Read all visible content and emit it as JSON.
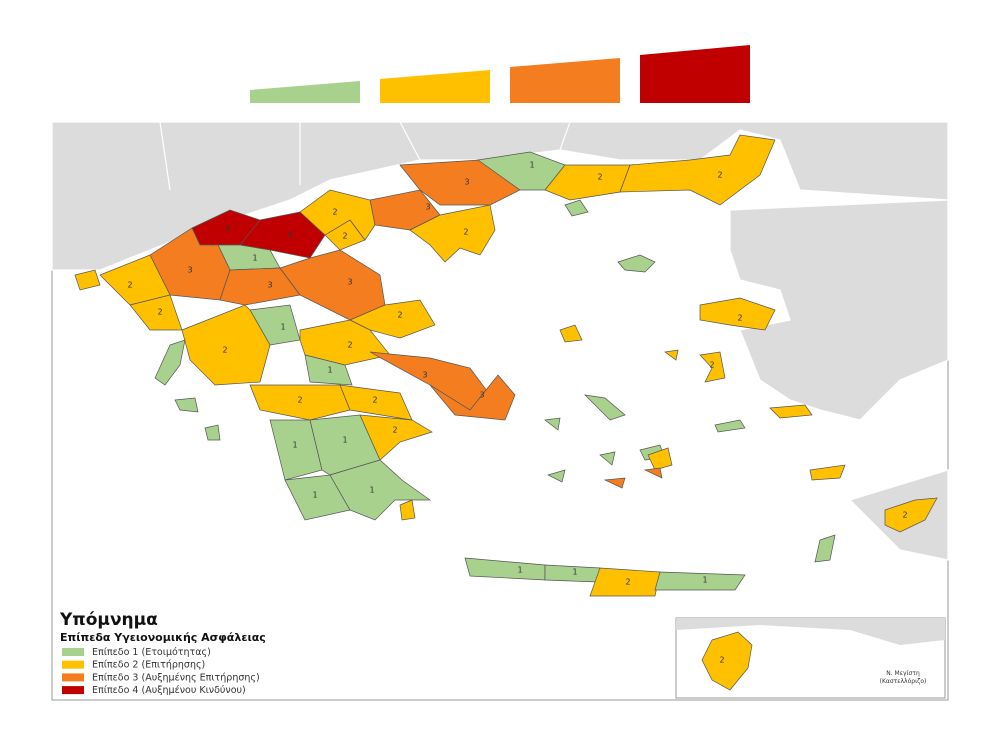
{
  "legend": {
    "title": "Υπόμνημα",
    "subtitle": "Επίπεδα Υγειονομικής Ασφάλειας",
    "items": [
      {
        "label": "Επίπεδο 1 (Ετοιμότητας)",
        "color": "#a9d18e"
      },
      {
        "label": "Επίπεδο 2 (Επιτήρησης)",
        "color": "#ffc000"
      },
      {
        "label": "Επίπεδο 3 (Αυξημένης Επιτήρησης)",
        "color": "#f47d20"
      },
      {
        "label": "Επίπεδο 4 (Αυξημένου Κινδύνου)",
        "color": "#c00000"
      }
    ]
  },
  "regions": [
    {
      "label": "4"
    },
    {
      "label": "4"
    },
    {
      "label": "1"
    },
    {
      "label": "3"
    },
    {
      "label": "2"
    },
    {
      "label": "2"
    },
    {
      "label": "3"
    },
    {
      "label": "3"
    },
    {
      "label": "2"
    },
    {
      "label": "3"
    },
    {
      "label": "3"
    },
    {
      "label": "1"
    },
    {
      "label": "2"
    },
    {
      "label": "2"
    },
    {
      "label": "2"
    },
    {
      "label": "2"
    },
    {
      "label": "2"
    },
    {
      "label": "1"
    },
    {
      "label": "2"
    },
    {
      "label": "2"
    },
    {
      "label": "1"
    },
    {
      "label": "3"
    },
    {
      "label": "3"
    },
    {
      "label": "2"
    },
    {
      "label": "2"
    },
    {
      "label": "1"
    },
    {
      "label": "1"
    },
    {
      "label": "1"
    },
    {
      "label": "1"
    },
    {
      "label": "2"
    },
    {
      "label": "1"
    },
    {
      "label": "1"
    },
    {
      "label": "2"
    },
    {
      "label": "1"
    },
    {
      "label": "2"
    },
    {
      "label": "2"
    },
    {
      "label": "2"
    }
  ],
  "inset": {
    "region": {
      "label": "2"
    },
    "note": [
      "Ν. Μεγίστη",
      "(Καστελλόριζο)"
    ]
  }
}
